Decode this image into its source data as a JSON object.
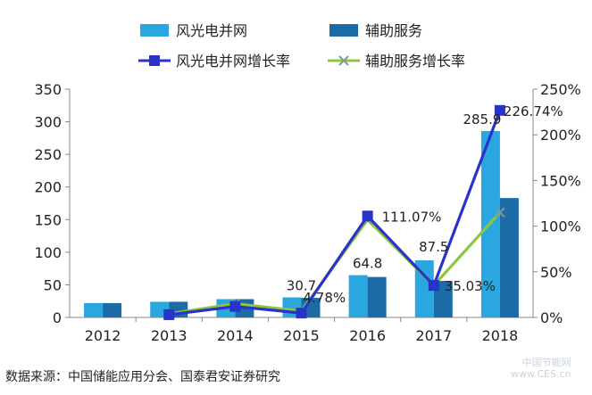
{
  "chart_data": {
    "type": "bar",
    "categories": [
      "2012",
      "2013",
      "2014",
      "2015",
      "2016",
      "2017",
      "2018"
    ],
    "series": [
      {
        "name": "风光电并网",
        "kind": "bar",
        "axis": "left",
        "color": "#2aa7e0",
        "values": [
          22,
          24,
          28,
          30.7,
          64.8,
          87.5,
          285.9
        ]
      },
      {
        "name": "辅助服务",
        "kind": "bar",
        "axis": "left",
        "color": "#1a6ba6",
        "values": [
          22,
          24,
          28,
          30,
          62,
          56,
          183
        ]
      },
      {
        "name": "风光电并网增长率",
        "kind": "line",
        "axis": "right",
        "color": "#2a33c9",
        "marker": "square",
        "values": [
          null,
          3,
          12,
          4.78,
          111.07,
          35.03,
          226.74
        ]
      },
      {
        "name": "辅助服务增长率",
        "kind": "line",
        "axis": "right",
        "color": "#8cc63f",
        "marker": "x",
        "values": [
          null,
          4,
          15,
          7,
          107,
          35,
          115
        ]
      }
    ],
    "yleft": {
      "ylim": [
        0,
        350
      ],
      "ticks": [
        "0",
        "50",
        "100",
        "150",
        "200",
        "250",
        "300",
        "350"
      ]
    },
    "yright": {
      "ylim": [
        0,
        250
      ],
      "ticks": [
        "0%",
        "50%",
        "100%",
        "150%",
        "200%",
        "250%"
      ]
    },
    "data_labels": [
      "30.7",
      "64.8",
      "87.5",
      "285.9",
      "4.78%",
      "111.07%",
      "35.03%",
      "226.74%"
    ],
    "legend": {
      "placement": "top",
      "items": [
        "风光电并网",
        "辅助服务",
        "风光电并网增长率",
        "辅助服务增长率"
      ]
    }
  },
  "source_note": "数据来源：中国储能应用分会、国泰君安证券研究",
  "watermark": {
    "line1": "中国节能网",
    "line2": "www.CES.cn"
  }
}
